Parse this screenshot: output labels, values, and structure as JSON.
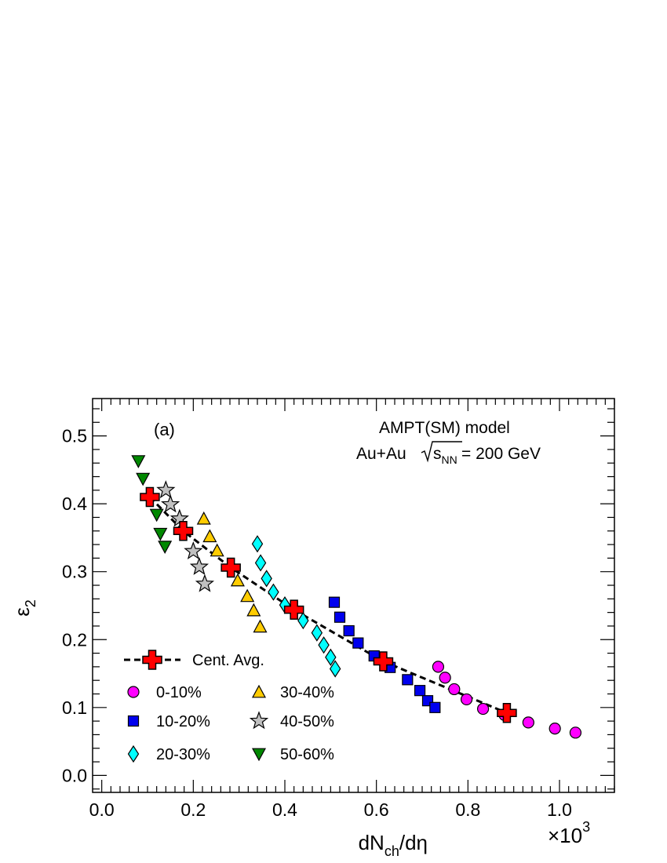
{
  "chart_data": {
    "type": "scatter",
    "xlabel": {
      "main": "dN",
      "sub": "ch",
      "rest": "/dη"
    },
    "ylabel": {
      "main": "ε",
      "sub": "2"
    },
    "x_multiplier": {
      "prefix": "×10",
      "exponent": "3"
    },
    "xlim": [
      -0.02,
      1.12
    ],
    "ylim": [
      -0.025,
      0.555
    ],
    "xticks": [
      0.0,
      0.2,
      0.4,
      0.6,
      0.8,
      1.0
    ],
    "xtick_labels": [
      "0.0",
      "0.2",
      "0.4",
      "0.6",
      "0.8",
      "1.0"
    ],
    "yticks": [
      0.0,
      0.1,
      0.2,
      0.3,
      0.4,
      0.5
    ],
    "ytick_labels": [
      "0.0",
      "0.1",
      "0.2",
      "0.3",
      "0.4",
      "0.5"
    ],
    "grid": false,
    "panel_label": "(a)",
    "annotation_line1": "AMPT(SM) model",
    "annotation_line2": {
      "prefix": "Au+Au ",
      "sqrt_body": "s",
      "sqrt_sub": "NN",
      "suffix": " = 200 GeV"
    },
    "legend_position": "bottom-left",
    "series": [
      {
        "name": "0-10%",
        "marker": "circle",
        "color": "#ff00ff",
        "x": [
          0.735,
          0.75,
          0.77,
          0.797,
          0.833,
          0.88,
          0.932,
          0.99,
          1.035
        ],
        "y": [
          0.16,
          0.144,
          0.127,
          0.112,
          0.098,
          0.089,
          0.078,
          0.069,
          0.063
        ]
      },
      {
        "name": "10-20%",
        "marker": "square",
        "color": "#0000ee",
        "x": [
          0.508,
          0.52,
          0.54,
          0.56,
          0.595,
          0.63,
          0.668,
          0.695,
          0.712,
          0.728
        ],
        "y": [
          0.255,
          0.233,
          0.213,
          0.195,
          0.176,
          0.159,
          0.141,
          0.125,
          0.11,
          0.1
        ]
      },
      {
        "name": "20-30%",
        "marker": "diamond",
        "color": "#00ffff",
        "x": [
          0.34,
          0.347,
          0.36,
          0.375,
          0.4,
          0.42,
          0.44,
          0.47,
          0.485,
          0.5,
          0.51
        ],
        "y": [
          0.341,
          0.313,
          0.29,
          0.27,
          0.251,
          0.244,
          0.228,
          0.21,
          0.192,
          0.174,
          0.157
        ]
      },
      {
        "name": "30-40%",
        "marker": "triangle-up",
        "color": "#ffcc00",
        "x": [
          0.223,
          0.236,
          0.252,
          0.297,
          0.318,
          0.332,
          0.346
        ],
        "y": [
          0.378,
          0.352,
          0.331,
          0.287,
          0.264,
          0.243,
          0.219
        ]
      },
      {
        "name": "40-50%",
        "marker": "star",
        "color": "#c0c0c0",
        "x": [
          0.14,
          0.15,
          0.17,
          0.2,
          0.213,
          0.225
        ],
        "y": [
          0.42,
          0.399,
          0.378,
          0.33,
          0.307,
          0.282
        ]
      },
      {
        "name": "50-60%",
        "marker": "triangle-down",
        "color": "#008800",
        "x": [
          0.08,
          0.09,
          0.12,
          0.128,
          0.138
        ],
        "y": [
          0.463,
          0.437,
          0.384,
          0.356,
          0.337
        ]
      }
    ],
    "average": {
      "name": "Cent. Avg.",
      "marker": "cross",
      "color": "#ff0000",
      "x": [
        0.105,
        0.178,
        0.282,
        0.42,
        0.615,
        0.885
      ],
      "y": [
        0.41,
        0.36,
        0.306,
        0.244,
        0.168,
        0.092
      ],
      "curve_x": [
        0.105,
        0.178,
        0.282,
        0.42,
        0.615,
        0.885
      ],
      "curve_y": [
        0.41,
        0.36,
        0.306,
        0.244,
        0.168,
        0.092
      ]
    },
    "legend_layout": [
      [
        "0-10%",
        "30-40%"
      ],
      [
        "10-20%",
        "40-50%"
      ],
      [
        "20-30%",
        "50-60%"
      ]
    ]
  }
}
